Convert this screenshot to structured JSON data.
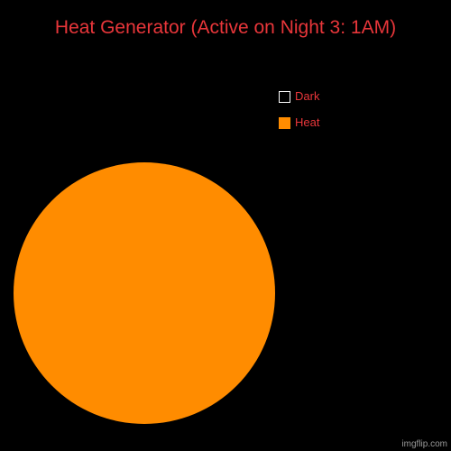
{
  "colors": {
    "text": "#e8363a",
    "background": "#000000"
  },
  "chart_data": {
    "type": "pie",
    "title": "Heat Generator (Active on Night 3: 1AM)",
    "legend_position": "top-right",
    "slices": [
      {
        "label": "Dark",
        "value": 0,
        "color": "#000000",
        "border": "#ffffff"
      },
      {
        "label": "Heat",
        "value": 100,
        "color": "#ff8c00",
        "border": "#ff8c00"
      }
    ]
  },
  "watermark": "imgflip.com"
}
